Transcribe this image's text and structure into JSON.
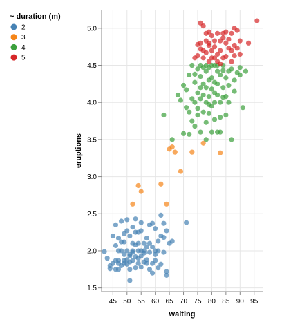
{
  "chart_data": {
    "type": "scatter",
    "xlabel": "waiting",
    "ylabel": "eruptions",
    "xlim": [
      41,
      98
    ],
    "ylim": [
      1.45,
      5.25
    ],
    "grid": true,
    "x_ticks": [
      45,
      50,
      55,
      60,
      65,
      70,
      75,
      80,
      85,
      90,
      95
    ],
    "y_ticks": [
      1.5,
      2.0,
      2.5,
      3.0,
      3.5,
      4.0,
      4.5,
      5.0
    ],
    "x_tick_labels": [
      "45",
      "50",
      "55",
      "60",
      "65",
      "70",
      "75",
      "80",
      "85",
      "90",
      "95"
    ],
    "y_tick_labels": [
      "1.5",
      "2.0",
      "2.5",
      "3.0",
      "3.5",
      "4.0",
      "4.5",
      "5.0"
    ],
    "legend": {
      "title": "~ duration (m)",
      "position": "top-left",
      "entries": [
        {
          "label": "2",
          "color": "#4682b4"
        },
        {
          "label": "3",
          "color": "#f58518"
        },
        {
          "label": "4",
          "color": "#3ca03c"
        },
        {
          "label": "5",
          "color": "#d62728"
        }
      ]
    },
    "series": [
      {
        "name": "2",
        "color": "#4682b4",
        "points": [
          [
            42,
            1.99
          ],
          [
            43,
            1.9
          ],
          [
            44,
            1.76
          ],
          [
            45,
            1.83
          ],
          [
            45,
            2.2
          ],
          [
            46,
            2.07
          ],
          [
            46,
            1.75
          ],
          [
            46,
            2.35
          ],
          [
            47,
            1.83
          ],
          [
            47,
            1.87
          ],
          [
            47,
            1.75
          ],
          [
            47,
            2.17
          ],
          [
            48,
            2.4
          ],
          [
            48,
            2.0
          ],
          [
            48,
            1.8
          ],
          [
            49,
            1.83
          ],
          [
            49,
            1.87
          ],
          [
            49,
            2.12
          ],
          [
            49,
            2.23
          ],
          [
            50,
            1.88
          ],
          [
            50,
            2.42
          ],
          [
            50,
            2.0
          ],
          [
            50,
            2.27
          ],
          [
            50,
            1.82
          ],
          [
            51,
            1.93
          ],
          [
            51,
            1.85
          ],
          [
            51,
            2.2
          ],
          [
            51,
            1.6
          ],
          [
            52,
            2.1
          ],
          [
            52,
            1.98
          ],
          [
            52,
            2.32
          ],
          [
            52,
            1.87
          ],
          [
            53,
            2.25
          ],
          [
            53,
            2.43
          ],
          [
            53,
            1.77
          ],
          [
            53,
            1.92
          ],
          [
            54,
            2.0
          ],
          [
            54,
            2.25
          ],
          [
            54,
            1.83
          ],
          [
            55,
            2.0
          ],
          [
            55,
            1.93
          ],
          [
            55,
            2.27
          ],
          [
            55,
            1.78
          ],
          [
            56,
            2.0
          ],
          [
            56,
            1.85
          ],
          [
            56,
            2.1
          ],
          [
            57,
            1.83
          ],
          [
            57,
            1.88
          ],
          [
            57,
            2.17
          ],
          [
            58,
            1.75
          ],
          [
            58,
            1.98
          ],
          [
            58,
            2.1
          ],
          [
            59,
            1.7
          ],
          [
            59,
            2.05
          ],
          [
            59,
            2.37
          ],
          [
            60,
            2.3
          ],
          [
            60,
            1.87
          ],
          [
            60,
            2.0
          ],
          [
            61,
            2.13
          ],
          [
            61,
            1.77
          ],
          [
            62,
            2.48
          ],
          [
            62,
            1.82
          ],
          [
            62,
            2.2
          ],
          [
            63,
            2.37
          ],
          [
            63,
            1.98
          ],
          [
            64,
            1.67
          ],
          [
            64,
            2.27
          ],
          [
            65,
            2.1
          ],
          [
            66,
            2.13
          ],
          [
            71,
            2.38
          ],
          [
            44,
            1.8
          ],
          [
            47,
            2.0
          ],
          [
            48,
            2.12
          ],
          [
            51,
            1.95
          ],
          [
            51,
            1.75
          ],
          [
            53,
            2.08
          ],
          [
            54,
            1.9
          ],
          [
            55,
            2.38
          ],
          [
            56,
            1.97
          ],
          [
            57,
            2.05
          ],
          [
            58,
            2.35
          ],
          [
            59,
            1.83
          ],
          [
            60,
            1.95
          ],
          [
            61,
            2.0
          ],
          [
            63,
            2.18
          ],
          [
            64,
            1.72
          ],
          [
            46,
            1.87
          ],
          [
            49,
            1.95
          ],
          [
            52,
            2.0
          ],
          [
            54,
            2.1
          ]
        ]
      },
      {
        "name": "3",
        "color": "#f58518",
        "points": [
          [
            52,
            2.63
          ],
          [
            54,
            2.88
          ],
          [
            55,
            2.8
          ],
          [
            62,
            2.9
          ],
          [
            64,
            2.63
          ],
          [
            65,
            3.37
          ],
          [
            67,
            3.33
          ],
          [
            69,
            3.07
          ],
          [
            73,
            3.33
          ],
          [
            77,
            3.45
          ],
          [
            83,
            3.32
          ],
          [
            66,
            3.4
          ]
        ]
      },
      {
        "name": "4",
        "color": "#3ca03c",
        "points": [
          [
            63,
            3.83
          ],
          [
            66,
            3.5
          ],
          [
            68,
            4.1
          ],
          [
            69,
            4.03
          ],
          [
            70,
            3.58
          ],
          [
            70,
            4.23
          ],
          [
            71,
            3.93
          ],
          [
            71,
            4.17
          ],
          [
            72,
            3.57
          ],
          [
            72,
            3.87
          ],
          [
            72,
            4.37
          ],
          [
            73,
            4.05
          ],
          [
            73,
            4.5
          ],
          [
            73,
            3.75
          ],
          [
            74,
            4.27
          ],
          [
            74,
            4.0
          ],
          [
            74,
            3.68
          ],
          [
            75,
            4.13
          ],
          [
            75,
            4.45
          ],
          [
            75,
            3.83
          ],
          [
            75,
            3.92
          ],
          [
            76,
            4.2
          ],
          [
            76,
            4.35
          ],
          [
            76,
            3.6
          ],
          [
            76,
            4.05
          ],
          [
            77,
            4.47
          ],
          [
            77,
            3.87
          ],
          [
            77,
            4.25
          ],
          [
            77,
            4.1
          ],
          [
            78,
            4.42
          ],
          [
            78,
            4.0
          ],
          [
            78,
            3.73
          ],
          [
            78,
            4.2
          ],
          [
            78,
            3.5
          ],
          [
            79,
            4.3
          ],
          [
            79,
            4.08
          ],
          [
            79,
            3.85
          ],
          [
            79,
            4.47
          ],
          [
            80,
            3.6
          ],
          [
            80,
            4.18
          ],
          [
            80,
            4.33
          ],
          [
            80,
            3.95
          ],
          [
            81,
            4.5
          ],
          [
            81,
            4.0
          ],
          [
            81,
            4.27
          ],
          [
            81,
            3.77
          ],
          [
            82,
            4.42
          ],
          [
            82,
            4.1
          ],
          [
            82,
            3.6
          ],
          [
            82,
            4.25
          ],
          [
            83,
            4.37
          ],
          [
            83,
            4.0
          ],
          [
            83,
            3.8
          ],
          [
            83,
            3.6
          ],
          [
            84,
            4.2
          ],
          [
            84,
            4.07
          ],
          [
            84,
            4.43
          ],
          [
            85,
            3.83
          ],
          [
            85,
            4.33
          ],
          [
            85,
            4.08
          ],
          [
            86,
            4.0
          ],
          [
            86,
            4.23
          ],
          [
            87,
            4.45
          ],
          [
            87,
            3.5
          ],
          [
            88,
            4.15
          ],
          [
            88,
            4.3
          ],
          [
            89,
            4.4
          ],
          [
            90,
            4.47
          ],
          [
            90,
            4.37
          ],
          [
            91,
            3.93
          ],
          [
            92,
            4.42
          ],
          [
            76,
            4.5
          ],
          [
            78,
            4.5
          ],
          [
            80,
            4.5
          ],
          [
            82,
            4.5
          ],
          [
            84,
            4.5
          ],
          [
            79,
            3.97
          ],
          [
            81,
            4.13
          ],
          [
            74,
            4.38
          ],
          [
            86,
            4.42
          ]
        ]
      },
      {
        "name": "5",
        "color": "#d62728",
        "points": [
          [
            74,
            4.6
          ],
          [
            75,
            4.78
          ],
          [
            75,
            4.63
          ],
          [
            76,
            4.8
          ],
          [
            76,
            5.07
          ],
          [
            77,
            4.7
          ],
          [
            77,
            5.03
          ],
          [
            77,
            4.6
          ],
          [
            78,
            4.83
          ],
          [
            78,
            4.67
          ],
          [
            78,
            4.93
          ],
          [
            79,
            4.77
          ],
          [
            79,
            4.55
          ],
          [
            79,
            4.8
          ],
          [
            80,
            4.7
          ],
          [
            80,
            4.6
          ],
          [
            80,
            4.9
          ],
          [
            81,
            4.75
          ],
          [
            81,
            4.6
          ],
          [
            81,
            4.83
          ],
          [
            82,
            4.65
          ],
          [
            82,
            4.93
          ],
          [
            82,
            4.55
          ],
          [
            83,
            4.83
          ],
          [
            83,
            4.7
          ],
          [
            84,
            4.6
          ],
          [
            84,
            4.87
          ],
          [
            84,
            4.93
          ],
          [
            85,
            4.8
          ],
          [
            85,
            4.62
          ],
          [
            86,
            4.73
          ],
          [
            86,
            4.85
          ],
          [
            87,
            4.93
          ],
          [
            87,
            4.55
          ],
          [
            88,
            5.0
          ],
          [
            88,
            4.77
          ],
          [
            88,
            4.63
          ],
          [
            89,
            4.97
          ],
          [
            89,
            4.73
          ],
          [
            90,
            4.83
          ],
          [
            90,
            4.65
          ],
          [
            93,
            4.8
          ],
          [
            96,
            5.1
          ],
          [
            83,
            4.52
          ],
          [
            79,
            4.95
          ],
          [
            76,
            4.72
          ],
          [
            85,
            4.95
          ],
          [
            87,
            4.7
          ]
        ]
      }
    ]
  }
}
